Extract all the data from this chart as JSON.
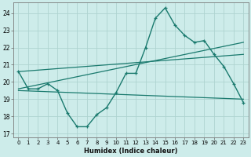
{
  "xlabel": "Humidex (Indice chaleur)",
  "xlim": [
    -0.5,
    23.5
  ],
  "ylim": [
    16.8,
    24.6
  ],
  "yticks": [
    17,
    18,
    19,
    20,
    21,
    22,
    23,
    24
  ],
  "xticks": [
    0,
    1,
    2,
    3,
    4,
    5,
    6,
    7,
    8,
    9,
    10,
    11,
    12,
    13,
    14,
    15,
    16,
    17,
    18,
    19,
    20,
    21,
    22,
    23
  ],
  "bg_color": "#cdecea",
  "grid_color": "#aed4d0",
  "line_color": "#1a7a6e",
  "main_line": {
    "x": [
      0,
      1,
      2,
      3,
      4,
      5,
      6,
      7,
      8,
      9,
      10,
      11,
      12,
      13,
      14,
      15,
      16,
      17,
      18,
      19,
      20,
      21,
      22,
      23
    ],
    "y": [
      20.6,
      19.6,
      19.6,
      19.9,
      19.5,
      18.2,
      17.4,
      17.4,
      18.1,
      18.5,
      19.4,
      20.5,
      20.5,
      22.0,
      23.7,
      24.3,
      23.3,
      22.7,
      22.3,
      22.4,
      21.6,
      20.9,
      19.9,
      18.8
    ]
  },
  "straight_lines": [
    {
      "x": [
        0,
        23
      ],
      "y": [
        20.6,
        21.6
      ]
    },
    {
      "x": [
        0,
        23
      ],
      "y": [
        19.5,
        19.0
      ]
    },
    {
      "x": [
        0,
        23
      ],
      "y": [
        19.6,
        22.3
      ]
    }
  ]
}
